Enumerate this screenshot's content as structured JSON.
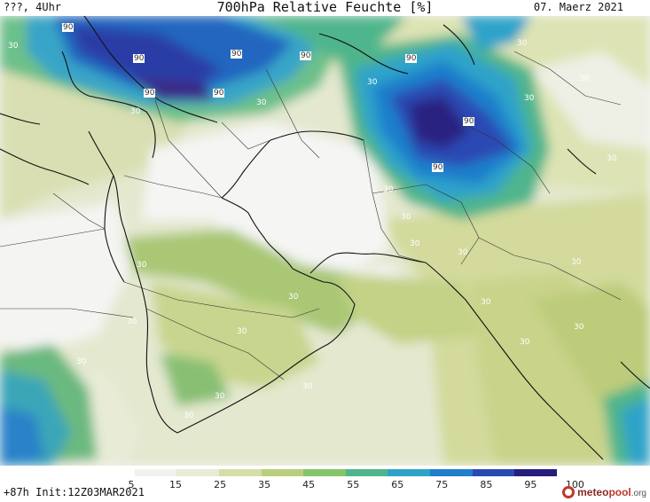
{
  "header": {
    "left": "???, 4Uhr",
    "title": "700hPa Relative Feuchte [%]",
    "date": "07. Maerz 2021"
  },
  "footer": {
    "left": "+87h  Init:12Z03MAR2021"
  },
  "logo": {
    "brand": "meteo",
    "brand2": "pool",
    "tld": ".org",
    "icon": "meteopool-logo-icon"
  },
  "legend": {
    "ticks": [
      "5",
      "15",
      "25",
      "35",
      "45",
      "55",
      "65",
      "75",
      "85",
      "95",
      "100"
    ],
    "colors": [
      "#ffffff",
      "#f1f1ee",
      "#e8ebd7",
      "#d6dda6",
      "#b9cf7d",
      "#86c46a",
      "#4fb58c",
      "#2ea3c9",
      "#1f7fcc",
      "#2b49b3",
      "#261d7c"
    ]
  },
  "contour_labels": [
    {
      "text": "90"
    },
    {
      "text": "90"
    },
    {
      "text": "90"
    },
    {
      "text": "90"
    },
    {
      "text": "90"
    },
    {
      "text": "90"
    },
    {
      "text": "90"
    },
    {
      "text": "90"
    },
    {
      "text": "90"
    },
    {
      "text": "30"
    },
    {
      "text": "30"
    },
    {
      "text": "30"
    },
    {
      "text": "30"
    },
    {
      "text": "30"
    },
    {
      "text": "30"
    },
    {
      "text": "30"
    },
    {
      "text": "30"
    },
    {
      "text": "30"
    },
    {
      "text": "30"
    },
    {
      "text": "30"
    },
    {
      "text": "30"
    },
    {
      "text": "30"
    },
    {
      "text": "30"
    },
    {
      "text": "30"
    },
    {
      "text": "30"
    },
    {
      "text": "30"
    },
    {
      "text": "30"
    },
    {
      "text": "30"
    },
    {
      "text": "30"
    },
    {
      "text": "30"
    },
    {
      "text": "30"
    },
    {
      "text": "30"
    },
    {
      "text": "30"
    }
  ]
}
